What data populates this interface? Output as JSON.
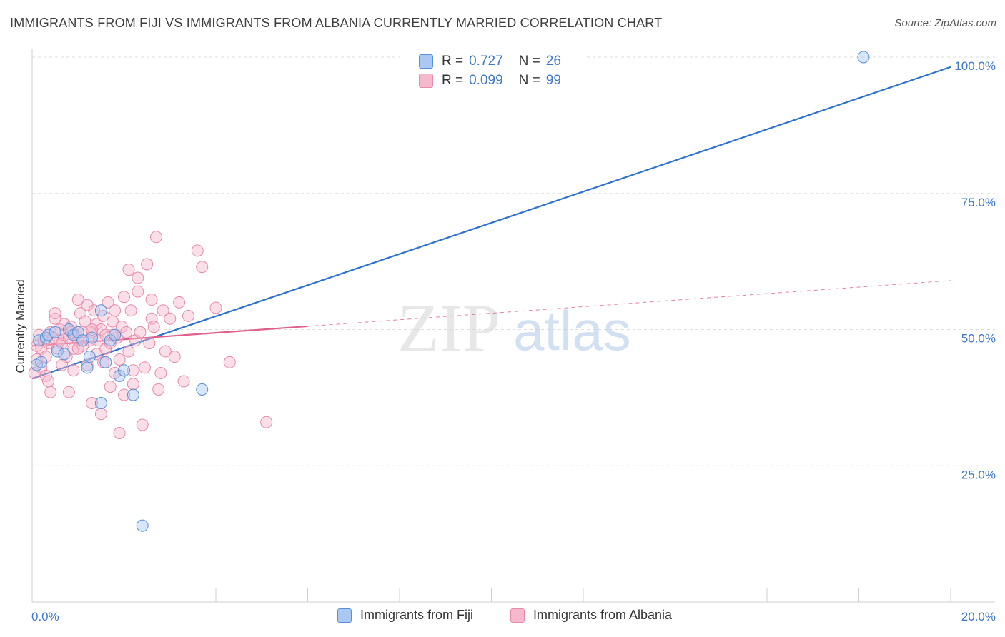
{
  "header": {
    "title": "IMMIGRANTS FROM FIJI VS IMMIGRANTS FROM ALBANIA CURRENTLY MARRIED CORRELATION CHART",
    "source": "Source: ZipAtlas.com"
  },
  "watermark": {
    "zip": "ZIP",
    "atlas": "atlas"
  },
  "colors": {
    "fiji_fill": "#a9c8f2",
    "fiji_stroke": "#5a8fd6",
    "fiji_line": "#2f72d0",
    "albania_fill": "#f6b8cd",
    "albania_stroke": "#e88aa9",
    "albania_line": "#e0608b",
    "grid": "#dedede",
    "tick_text": "#3f78c6"
  },
  "legend_top": [
    {
      "series": "fiji",
      "r_label": "R =",
      "r_value": "0.727",
      "n_label": "N =",
      "n_value": "26"
    },
    {
      "series": "albania",
      "r_label": "R =",
      "r_value": "0.099",
      "n_label": "N =",
      "n_value": "99"
    }
  ],
  "legend_bottom": [
    {
      "series": "fiji",
      "label": "Immigrants from Fiji"
    },
    {
      "series": "albania",
      "label": "Immigrants from Albania"
    }
  ],
  "chart_data": {
    "type": "scatter",
    "title": "IMMIGRANTS FROM FIJI VS IMMIGRANTS FROM ALBANIA CURRENTLY MARRIED CORRELATION CHART",
    "xlabel": "",
    "ylabel": "Currently Married",
    "xlim": [
      0,
      20
    ],
    "ylim": [
      0,
      100
    ],
    "x_tick_labels": [
      "0.0%",
      "20.0%"
    ],
    "y_ticks": [
      25,
      50,
      75,
      100
    ],
    "y_tick_labels": [
      "25.0%",
      "50.0%",
      "75.0%",
      "100.0%"
    ],
    "grid": true,
    "series": [
      {
        "name": "Immigrants from Fiji",
        "key": "fiji",
        "r": 0.727,
        "n": 26,
        "trend": {
          "x0": 0,
          "y0": 41.0,
          "x1": 20,
          "y1": 98.2,
          "solid_until": 20
        },
        "points": [
          [
            0.1,
            43.5
          ],
          [
            0.15,
            48.0
          ],
          [
            0.2,
            44.0
          ],
          [
            0.3,
            48.5
          ],
          [
            0.35,
            49.0
          ],
          [
            0.5,
            49.5
          ],
          [
            0.55,
            46.0
          ],
          [
            0.7,
            45.5
          ],
          [
            0.8,
            50.0
          ],
          [
            0.9,
            49.0
          ],
          [
            1.0,
            49.5
          ],
          [
            1.1,
            48.0
          ],
          [
            1.2,
            43.0
          ],
          [
            1.25,
            45.0
          ],
          [
            1.3,
            48.5
          ],
          [
            1.5,
            36.5
          ],
          [
            1.5,
            53.5
          ],
          [
            1.6,
            44.0
          ],
          [
            1.7,
            48.0
          ],
          [
            1.8,
            49.0
          ],
          [
            1.9,
            41.5
          ],
          [
            2.0,
            42.5
          ],
          [
            2.2,
            38.0
          ],
          [
            2.4,
            14.0
          ],
          [
            3.7,
            39.0
          ],
          [
            18.1,
            100.0
          ]
        ]
      },
      {
        "name": "Immigrants from Albania",
        "key": "albania",
        "r": 0.099,
        "n": 99,
        "trend": {
          "x0": 0,
          "y0": 47.0,
          "x1": 20,
          "y1": 59.0,
          "solid_until": 6.0
        },
        "points": [
          [
            0.05,
            42.0
          ],
          [
            0.1,
            44.5
          ],
          [
            0.1,
            47.0
          ],
          [
            0.15,
            49.0
          ],
          [
            0.2,
            43.0
          ],
          [
            0.2,
            46.5
          ],
          [
            0.25,
            48.0
          ],
          [
            0.3,
            41.5
          ],
          [
            0.3,
            45.0
          ],
          [
            0.35,
            47.5
          ],
          [
            0.4,
            38.5
          ],
          [
            0.4,
            49.5
          ],
          [
            0.45,
            48.5
          ],
          [
            0.5,
            52.0
          ],
          [
            0.5,
            53.0
          ],
          [
            0.55,
            46.5
          ],
          [
            0.6,
            48.0
          ],
          [
            0.6,
            50.0
          ],
          [
            0.65,
            47.5
          ],
          [
            0.7,
            51.0
          ],
          [
            0.7,
            49.0
          ],
          [
            0.75,
            45.0
          ],
          [
            0.8,
            38.5
          ],
          [
            0.8,
            48.5
          ],
          [
            0.85,
            50.5
          ],
          [
            0.9,
            42.5
          ],
          [
            0.9,
            46.5
          ],
          [
            0.95,
            49.0
          ],
          [
            1.0,
            55.5
          ],
          [
            1.0,
            48.0
          ],
          [
            1.05,
            53.0
          ],
          [
            1.1,
            47.0
          ],
          [
            1.1,
            49.5
          ],
          [
            1.15,
            51.5
          ],
          [
            1.2,
            54.5
          ],
          [
            1.2,
            43.5
          ],
          [
            1.25,
            48.0
          ],
          [
            1.3,
            49.5
          ],
          [
            1.3,
            36.5
          ],
          [
            1.35,
            53.5
          ],
          [
            1.4,
            45.5
          ],
          [
            1.4,
            51.0
          ],
          [
            1.45,
            48.0
          ],
          [
            1.5,
            50.0
          ],
          [
            1.5,
            34.5
          ],
          [
            1.55,
            52.5
          ],
          [
            1.6,
            46.5
          ],
          [
            1.6,
            49.0
          ],
          [
            1.65,
            55.0
          ],
          [
            1.7,
            39.5
          ],
          [
            1.7,
            47.5
          ],
          [
            1.75,
            51.5
          ],
          [
            1.8,
            42.0
          ],
          [
            1.8,
            53.5
          ],
          [
            1.85,
            48.5
          ],
          [
            1.9,
            31.0
          ],
          [
            1.9,
            44.5
          ],
          [
            1.95,
            50.5
          ],
          [
            2.0,
            56.0
          ],
          [
            2.0,
            38.0
          ],
          [
            2.05,
            49.5
          ],
          [
            2.1,
            61.0
          ],
          [
            2.1,
            46.0
          ],
          [
            2.15,
            53.5
          ],
          [
            2.2,
            42.5
          ],
          [
            2.25,
            48.0
          ],
          [
            2.3,
            59.5
          ],
          [
            2.3,
            57.0
          ],
          [
            2.35,
            49.5
          ],
          [
            2.4,
            32.5
          ],
          [
            2.45,
            43.0
          ],
          [
            2.5,
            62.0
          ],
          [
            2.55,
            47.5
          ],
          [
            2.6,
            55.5
          ],
          [
            2.6,
            52.0
          ],
          [
            2.65,
            50.5
          ],
          [
            2.7,
            67.0
          ],
          [
            2.75,
            39.0
          ],
          [
            2.8,
            42.0
          ],
          [
            2.85,
            53.5
          ],
          [
            2.9,
            46.0
          ],
          [
            3.0,
            52.0
          ],
          [
            3.1,
            45.0
          ],
          [
            3.2,
            55.0
          ],
          [
            3.3,
            40.5
          ],
          [
            3.4,
            52.5
          ],
          [
            3.6,
            64.5
          ],
          [
            3.7,
            61.5
          ],
          [
            4.0,
            54.0
          ],
          [
            4.3,
            44.0
          ],
          [
            5.1,
            33.0
          ],
          [
            1.3,
            50.0
          ],
          [
            0.65,
            43.5
          ],
          [
            1.0,
            46.5
          ],
          [
            1.75,
            49.0
          ],
          [
            2.2,
            40.0
          ],
          [
            0.35,
            40.5
          ],
          [
            1.55,
            44.0
          ],
          [
            0.85,
            49.5
          ]
        ]
      }
    ]
  }
}
